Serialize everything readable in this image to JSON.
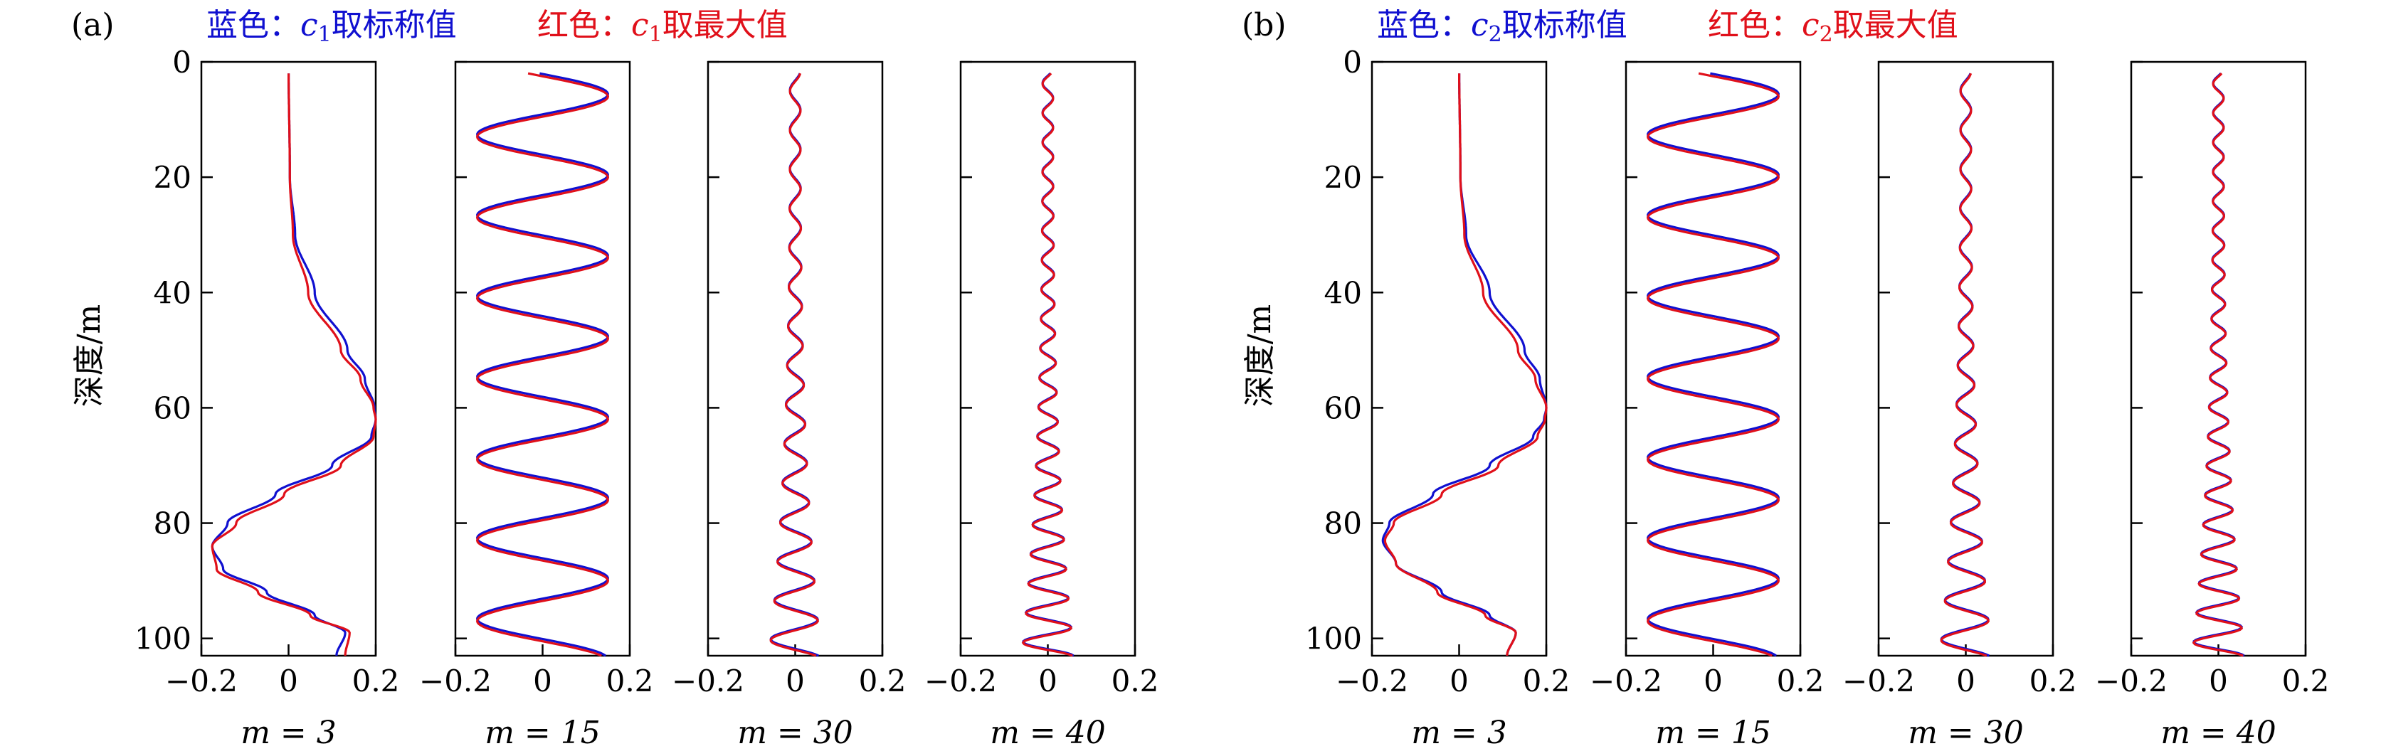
{
  "figure": {
    "panels": [
      {
        "id": "a",
        "tag": "(a)",
        "legend": {
          "blue_prefix": "蓝色：",
          "blue_var": "c",
          "blue_sub": "1",
          "blue_suffix": "取标称值",
          "red_prefix": "红色：",
          "red_var": "c",
          "red_sub": "1",
          "red_suffix": "取最大值"
        },
        "ylabel": "深度/m"
      },
      {
        "id": "b",
        "tag": "(b)",
        "legend": {
          "blue_prefix": "蓝色：",
          "blue_var": "c",
          "blue_sub": "2",
          "blue_suffix": "取标称值",
          "red_prefix": "红色：",
          "red_var": "c",
          "red_sub": "2",
          "red_suffix": "取最大值"
        },
        "ylabel": "深度/m"
      }
    ],
    "colors": {
      "blue": "#1010d0",
      "red": "#e0101a"
    }
  },
  "chart_data": [
    {
      "panel": "a",
      "type": "line",
      "m_label": "m = 3",
      "m": 3,
      "xlim": [
        -0.2,
        0.2
      ],
      "ylim": [
        0,
        103
      ],
      "y_inverted": true,
      "xticks": [
        "−0.2",
        "0",
        "0.2"
      ],
      "yticks": [
        "0",
        "20",
        "40",
        "60",
        "80",
        "100"
      ],
      "series": [
        {
          "color": "blue",
          "depth": [
            0,
            20,
            30,
            40,
            50,
            55,
            60,
            62,
            65,
            70,
            75,
            80,
            84,
            88,
            92,
            96,
            99,
            103
          ],
          "value": [
            0,
            0.003,
            0.015,
            0.06,
            0.135,
            0.175,
            0.197,
            0.2,
            0.19,
            0.1,
            -0.03,
            -0.14,
            -0.175,
            -0.15,
            -0.05,
            0.06,
            0.13,
            0.11
          ]
        },
        {
          "color": "red",
          "depth": [
            0,
            20,
            30,
            40,
            50,
            55,
            60,
            62,
            65,
            70,
            75,
            80,
            84,
            88,
            92,
            96,
            99,
            103
          ],
          "value": [
            0,
            0.003,
            0.01,
            0.045,
            0.12,
            0.165,
            0.195,
            0.2,
            0.195,
            0.12,
            -0.01,
            -0.12,
            -0.175,
            -0.165,
            -0.07,
            0.05,
            0.14,
            0.13
          ]
        }
      ]
    },
    {
      "panel": "a",
      "type": "line",
      "m_label": "m = 15",
      "m": 15,
      "xlim": [
        -0.2,
        0.2
      ],
      "ylim": [
        0,
        103
      ],
      "y_inverted": true,
      "xticks": [
        "−0.2",
        "0",
        "0.2"
      ],
      "yticks": [
        "0",
        "20",
        "40",
        "60",
        "80",
        "100"
      ],
      "wave": {
        "amplitude": 0.15,
        "period_m": 14,
        "phase_depth": 6,
        "blue_shift_m": 0.4
      }
    },
    {
      "panel": "a",
      "type": "line",
      "m_label": "m = 30",
      "m": 30,
      "xlim": [
        -0.2,
        0.2
      ],
      "ylim": [
        0,
        103
      ],
      "y_inverted": true,
      "xticks": [
        "−0.2",
        "0",
        "0.2"
      ],
      "yticks": [
        "0",
        "20",
        "40",
        "60",
        "80",
        "100"
      ],
      "wave": {
        "amplitude_top": 0.012,
        "amplitude_bottom": 0.06,
        "period_m": 6.8,
        "blue_shift_m": 0.2
      }
    },
    {
      "panel": "a",
      "type": "line",
      "m_label": "m = 40",
      "m": 40,
      "xlim": [
        -0.2,
        0.2
      ],
      "ylim": [
        0,
        103
      ],
      "y_inverted": true,
      "xticks": [
        "−0.2",
        "0",
        "0.2"
      ],
      "yticks": [
        "0",
        "20",
        "40",
        "60",
        "80",
        "100"
      ],
      "wave": {
        "amplitude_top": 0.012,
        "amplitude_bottom": 0.06,
        "period_m": 5.1,
        "blue_shift_m": 0.15
      }
    },
    {
      "panel": "b",
      "type": "line",
      "m_label": "m = 3",
      "m": 3,
      "xlim": [
        -0.2,
        0.2
      ],
      "ylim": [
        0,
        103
      ],
      "y_inverted": true,
      "xticks": [
        "−0.2",
        "0",
        "0.2"
      ],
      "yticks": [
        "0",
        "20",
        "40",
        "60",
        "80",
        "100"
      ],
      "series": [
        {
          "color": "blue",
          "depth": [
            0,
            20,
            30,
            40,
            50,
            55,
            60,
            62,
            65,
            70,
            75,
            80,
            83,
            87,
            92,
            96,
            99,
            103
          ],
          "value": [
            0,
            0.003,
            0.016,
            0.07,
            0.15,
            0.185,
            0.2,
            0.195,
            0.17,
            0.07,
            -0.06,
            -0.16,
            -0.175,
            -0.145,
            -0.04,
            0.07,
            0.13,
            0.11
          ]
        },
        {
          "color": "red",
          "depth": [
            0,
            20,
            30,
            40,
            50,
            55,
            60,
            62,
            65,
            70,
            75,
            80,
            83,
            87,
            92,
            96,
            99,
            103
          ],
          "value": [
            0,
            0.003,
            0.012,
            0.055,
            0.135,
            0.175,
            0.2,
            0.197,
            0.18,
            0.09,
            -0.04,
            -0.15,
            -0.17,
            -0.145,
            -0.05,
            0.06,
            0.13,
            0.11
          ]
        }
      ]
    },
    {
      "panel": "b",
      "type": "line",
      "m_label": "m = 15",
      "m": 15,
      "xlim": [
        -0.2,
        0.2
      ],
      "ylim": [
        0,
        103
      ],
      "y_inverted": true,
      "xticks": [
        "−0.2",
        "0",
        "0.2"
      ],
      "yticks": [
        "0",
        "20",
        "40",
        "60",
        "80",
        "100"
      ],
      "wave": {
        "amplitude": 0.15,
        "period_m": 14,
        "phase_depth": 6,
        "blue_shift_m": 0.4
      }
    },
    {
      "panel": "b",
      "type": "line",
      "m_label": "m = 30",
      "m": 30,
      "xlim": [
        -0.2,
        0.2
      ],
      "ylim": [
        0,
        103
      ],
      "y_inverted": true,
      "xticks": [
        "−0.2",
        "0",
        "0.2"
      ],
      "yticks": [
        "0",
        "20",
        "40",
        "60",
        "80",
        "100"
      ],
      "wave": {
        "amplitude_top": 0.012,
        "amplitude_bottom": 0.06,
        "period_m": 6.8,
        "blue_shift_m": 0.2
      }
    },
    {
      "panel": "b",
      "type": "line",
      "m_label": "m = 40",
      "m": 40,
      "xlim": [
        -0.2,
        0.2
      ],
      "ylim": [
        0,
        103
      ],
      "y_inverted": true,
      "xticks": [
        "−0.2",
        "0",
        "0.2"
      ],
      "yticks": [
        "0",
        "20",
        "40",
        "60",
        "80",
        "100"
      ],
      "wave": {
        "amplitude_top": 0.012,
        "amplitude_bottom": 0.06,
        "period_m": 5.1,
        "blue_shift_m": 0.15
      }
    }
  ]
}
